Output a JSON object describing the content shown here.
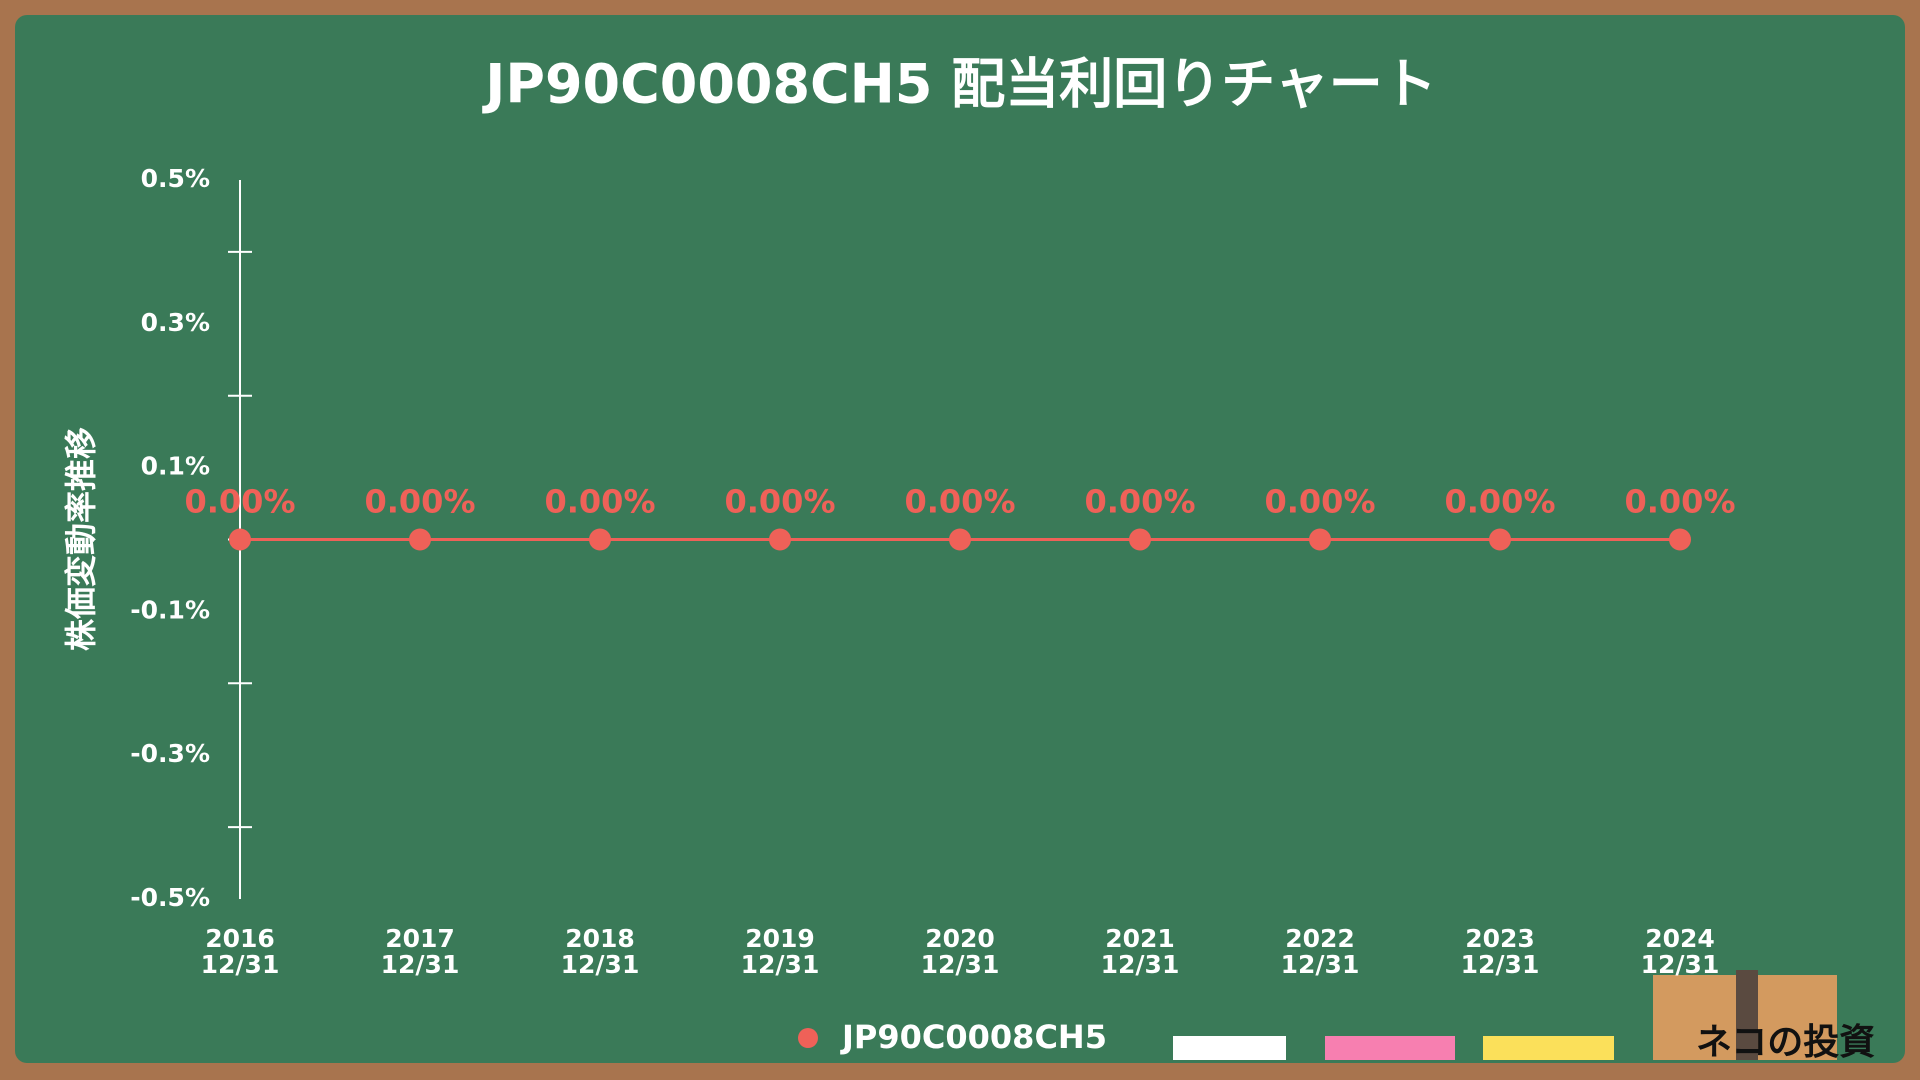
{
  "chart_data": {
    "type": "line",
    "title": "JP90C0008CH5 配当利回りチャート",
    "y_label": "株価変動率推移",
    "categories": [
      "2016 12/31",
      "2017 12/31",
      "2018 12/31",
      "2019 12/31",
      "2020 12/31",
      "2021 12/31",
      "2022 12/31",
      "2023 12/31",
      "2024 12/31"
    ],
    "series": [
      {
        "name": "JP90C0008CH5",
        "color": "#ef6158",
        "values": [
          0,
          0,
          0,
          0,
          0,
          0,
          0,
          0,
          0
        ],
        "value_labels": [
          "0.00%",
          "0.00%",
          "0.00%",
          "0.00%",
          "0.00%",
          "0.00%",
          "0.00%",
          "0.00%",
          "0.00%"
        ]
      }
    ],
    "ylim": [
      -0.5,
      0.5
    ],
    "yticks": [
      {
        "value": 0.5,
        "label": "0.5%"
      },
      {
        "value": 0.3,
        "label": "0.3%"
      },
      {
        "value": 0.1,
        "label": "0.1%"
      },
      {
        "value": -0.1,
        "label": "-0.1%"
      },
      {
        "value": -0.3,
        "label": "-0.3%"
      },
      {
        "value": -0.5,
        "label": "-0.5%"
      }
    ],
    "yminorticks": [
      0.4,
      0.2,
      0,
      -0.2,
      -0.4
    ],
    "logo": "ネコの投資"
  }
}
